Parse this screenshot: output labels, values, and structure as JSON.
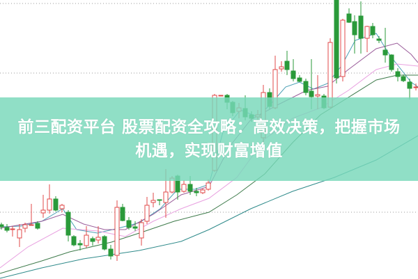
{
  "banner": {
    "title": "前三配资平台 股票配资全攻略：高效决策，把握市场机遇，实现财富增值"
  },
  "chart_data": {
    "type": "candlestick",
    "title": "",
    "axes_visible": false,
    "grid": "horizontal dotted",
    "series": [
      {
        "kind": "candles"
      },
      {
        "kind": "moving-average",
        "color": "#4a9fb5"
      },
      {
        "kind": "moving-average",
        "color": "#9a5c9a"
      },
      {
        "kind": "moving-average",
        "color": "#e8a0e0"
      },
      {
        "kind": "moving-average",
        "color": "#3d7a4a"
      },
      {
        "kind": "moving-average",
        "color": "#2e8a8a"
      }
    ],
    "colors": {
      "up": "#e04848",
      "down": "#2a9a3a",
      "grid": "#999999",
      "banner": "#78d8ba"
    }
  }
}
